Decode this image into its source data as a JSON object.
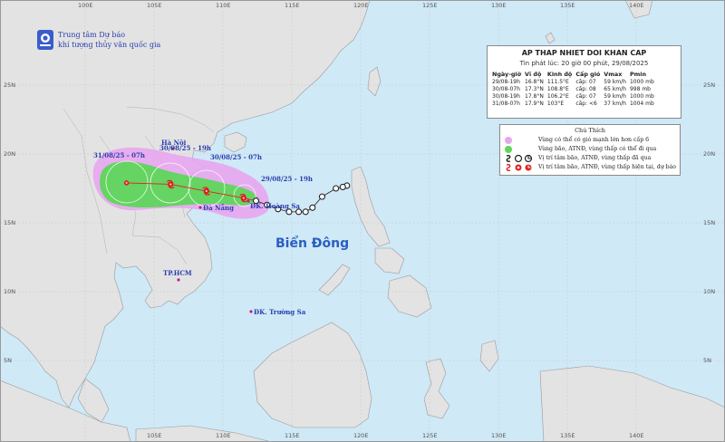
{
  "agency": {
    "line1": "Trung tâm Dự báo",
    "line2": "khí tượng thủy văn quốc gia"
  },
  "grid": {
    "lon_labels": [
      "100E",
      "105E",
      "110E",
      "115E",
      "120E",
      "125E",
      "130E",
      "135E",
      "140E"
    ],
    "lat_labels": [
      "25N",
      "20N",
      "15N",
      "10N",
      "5N"
    ],
    "lon_labels_bottom": [
      "105E",
      "110E",
      "115E",
      "120E",
      "125E",
      "130E",
      "135E",
      "140E"
    ]
  },
  "info": {
    "title": "AP THAP NHIET DOI KHAN CAP",
    "issued": "Tin phát lúc: 20 giờ 00 phút, 29/08/2025",
    "headers": [
      "Ngày-giờ",
      "Vĩ độ",
      "Kinh độ",
      "Cấp gió",
      "Vmax",
      "Pmin"
    ],
    "rows": [
      [
        "29/08-19h",
        "16.8°N",
        "111.5°E",
        "cấp: 07",
        "59 km/h",
        "1000 mb"
      ],
      [
        "30/08-07h",
        "17.3°N",
        "108.8°E",
        "cấp: 08",
        "65 km/h",
        "998 mb"
      ],
      [
        "30/08-19h",
        "17.8°N",
        "106.2°E",
        "cấp: 07",
        "59 km/h",
        "1000 mb"
      ],
      [
        "31/08-07h",
        "17.9°N",
        "103°E",
        "cấp: <6",
        "37 km/h",
        "1004 mb"
      ]
    ]
  },
  "legend": {
    "title": "Chú Thích",
    "items": [
      {
        "text": "Vùng có thể có gió mạnh lớn hơn cấp 6",
        "color": "#e7a6ee"
      },
      {
        "text": "Vùng bão, ATNĐ, vùng thấp có thể đi qua",
        "color": "#5ed65a"
      },
      {
        "text": "Vị trí tâm bão, ATNĐ, vùng thấp đã qua",
        "color": "#222222"
      },
      {
        "text": "Vị trí tâm bão, ATNĐ, vùng thấp hiện tại, dự báo",
        "color": "#e02020"
      }
    ]
  },
  "places": {
    "hanoi": "Hà Nội",
    "danang": "Đà Nẵng",
    "hcm": "TP.HCM",
    "hoangsa": "ĐK. Hoàng Sa",
    "truongsa": "ĐK. Trường Sa",
    "sea": "Biển Đông"
  },
  "forecast_labels": {
    "t0": "29/08/25 - 19h",
    "t1": "30/08/25 - 07h",
    "t2": "30/08/25 - 19h",
    "t3": "31/08/25 - 07h"
  },
  "colors": {
    "sea": "#cfe9f7",
    "land": "#e3e3e3",
    "storm_zone": "#5ed65a",
    "wind_zone": "#e7a6ee",
    "forecast_point": "#e02020",
    "past_track": "#222222",
    "label_blue": "#2a3fae"
  },
  "past_track": [
    {
      "lon": 119.0,
      "lat": 17.7
    },
    {
      "lon": 118.7,
      "lat": 17.6
    },
    {
      "lon": 118.2,
      "lat": 17.5
    },
    {
      "lon": 117.2,
      "lat": 16.9
    },
    {
      "lon": 116.5,
      "lat": 16.1
    },
    {
      "lon": 116.0,
      "lat": 15.8
    },
    {
      "lon": 115.5,
      "lat": 15.8
    },
    {
      "lon": 114.8,
      "lat": 15.8
    },
    {
      "lon": 114.0,
      "lat": 16.0
    },
    {
      "lon": 113.2,
      "lat": 16.3
    },
    {
      "lon": 112.4,
      "lat": 16.6
    }
  ],
  "forecast_track": [
    {
      "lon": 111.5,
      "lat": 16.8
    },
    {
      "lon": 108.8,
      "lat": 17.3
    },
    {
      "lon": 106.2,
      "lat": 17.8
    },
    {
      "lon": 103.0,
      "lat": 17.9
    }
  ]
}
